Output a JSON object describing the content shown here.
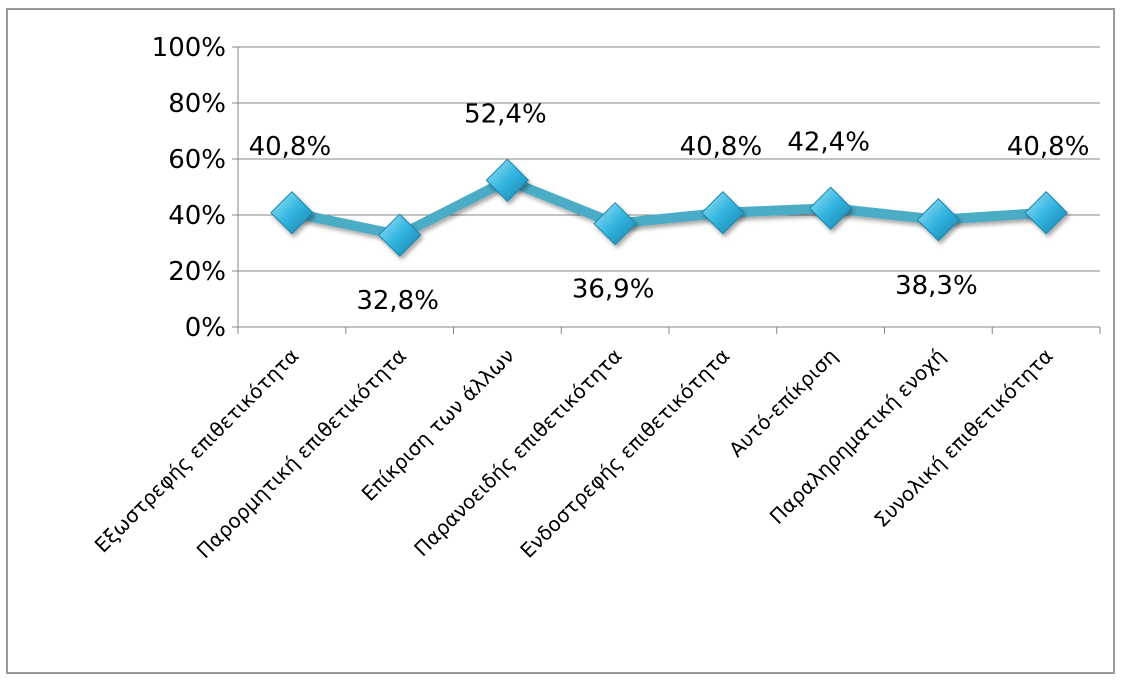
{
  "chart_data": {
    "type": "line",
    "categories": [
      "Εξωστρεφής επιθετικότητα",
      "Παρορμητική επιθετικότητα",
      "Επίκριση των άλλων",
      "Παρανοειδής επιθετικότητα",
      "Ενδοστρεφής επιθετικότητα",
      "Αυτό-επίκριση",
      "Παραληρηματική ενοχή",
      "Συνολική επιθετικότητα"
    ],
    "series": [
      {
        "values": [
          40.8,
          32.8,
          52.4,
          36.9,
          40.8,
          42.4,
          38.3,
          40.8
        ],
        "labels": [
          "40,8%",
          "32,8%",
          "52,4%",
          "36,9%",
          "40,8%",
          "42,4%",
          "38,3%",
          "40,8%"
        ],
        "label_positions": [
          "above",
          "below",
          "above",
          "below",
          "above",
          "above",
          "below",
          "above"
        ]
      }
    ],
    "ylim": [
      0,
      100
    ],
    "yticks": [
      0,
      20,
      40,
      60,
      80,
      100
    ],
    "ytick_labels": [
      "0%",
      "20%",
      "40%",
      "60%",
      "80%",
      "100%"
    ],
    "grid": true,
    "legend": "none",
    "line_color": "#4BACC6",
    "marker": "diamond",
    "marker_color": "#31B5E0"
  }
}
